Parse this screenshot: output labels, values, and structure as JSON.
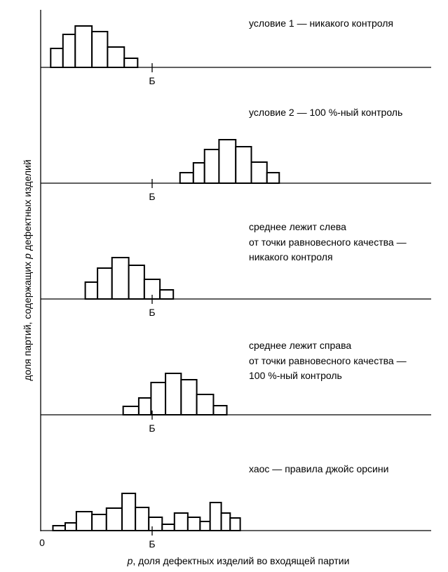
{
  "chart_data": {
    "type": "bar",
    "subtype": "stacked-panels-histogram",
    "ylabel": "доля партий, содержащих p дефектных изделий",
    "ylabel_italic_part": "p",
    "xlabel": "p, доля дефектных изделий во входящей партии",
    "xlabel_italic_part": "p",
    "x_tick_labels": {
      "zero": "0",
      "breakeven": "Б"
    },
    "xlim": [
      0,
      3.5
    ],
    "breakeven_x": 1,
    "panels": [
      {
        "title_lines": [
          "условие 1 — никакого контроля"
        ],
        "bin_edges": [
          0.09,
          0.2,
          0.31,
          0.46,
          0.6,
          0.75,
          0.87
        ],
        "heights": [
          0.27,
          0.47,
          0.59,
          0.51,
          0.29,
          0.13
        ]
      },
      {
        "title_lines": [
          "условие 2 — 100 %-ный контроль"
        ],
        "bin_edges": [
          1.25,
          1.37,
          1.47,
          1.6,
          1.75,
          1.89,
          2.03,
          2.14
        ],
        "heights": [
          0.15,
          0.29,
          0.48,
          0.62,
          0.52,
          0.3,
          0.15
        ]
      },
      {
        "title_lines": [
          "среднее лежит слева",
          "от точки равновесного качества —",
          "никакого контроля"
        ],
        "bin_edges": [
          0.4,
          0.51,
          0.64,
          0.79,
          0.93,
          1.07,
          1.19
        ],
        "heights": [
          0.24,
          0.44,
          0.59,
          0.48,
          0.28,
          0.13
        ]
      },
      {
        "title_lines": [
          "среднее лежит справа",
          "от точки равновесного качества —",
          "100 %-ный контроль"
        ],
        "bin_edges": [
          0.74,
          0.88,
          0.99,
          1.12,
          1.26,
          1.4,
          1.55,
          1.67
        ],
        "heights": [
          0.12,
          0.24,
          0.46,
          0.59,
          0.5,
          0.29,
          0.13
        ]
      },
      {
        "title_lines": [
          "хаос — правила джойс орсини"
        ],
        "bin_edges": [
          0.11,
          0.22,
          0.32,
          0.46,
          0.59,
          0.73,
          0.85,
          0.97,
          1.09,
          1.2,
          1.32,
          1.43,
          1.52,
          1.62,
          1.7,
          1.79
        ],
        "heights": [
          0.07,
          0.11,
          0.27,
          0.23,
          0.32,
          0.53,
          0.33,
          0.19,
          0.09,
          0.25,
          0.19,
          0.13,
          0.4,
          0.25,
          0.18
        ]
      }
    ]
  }
}
